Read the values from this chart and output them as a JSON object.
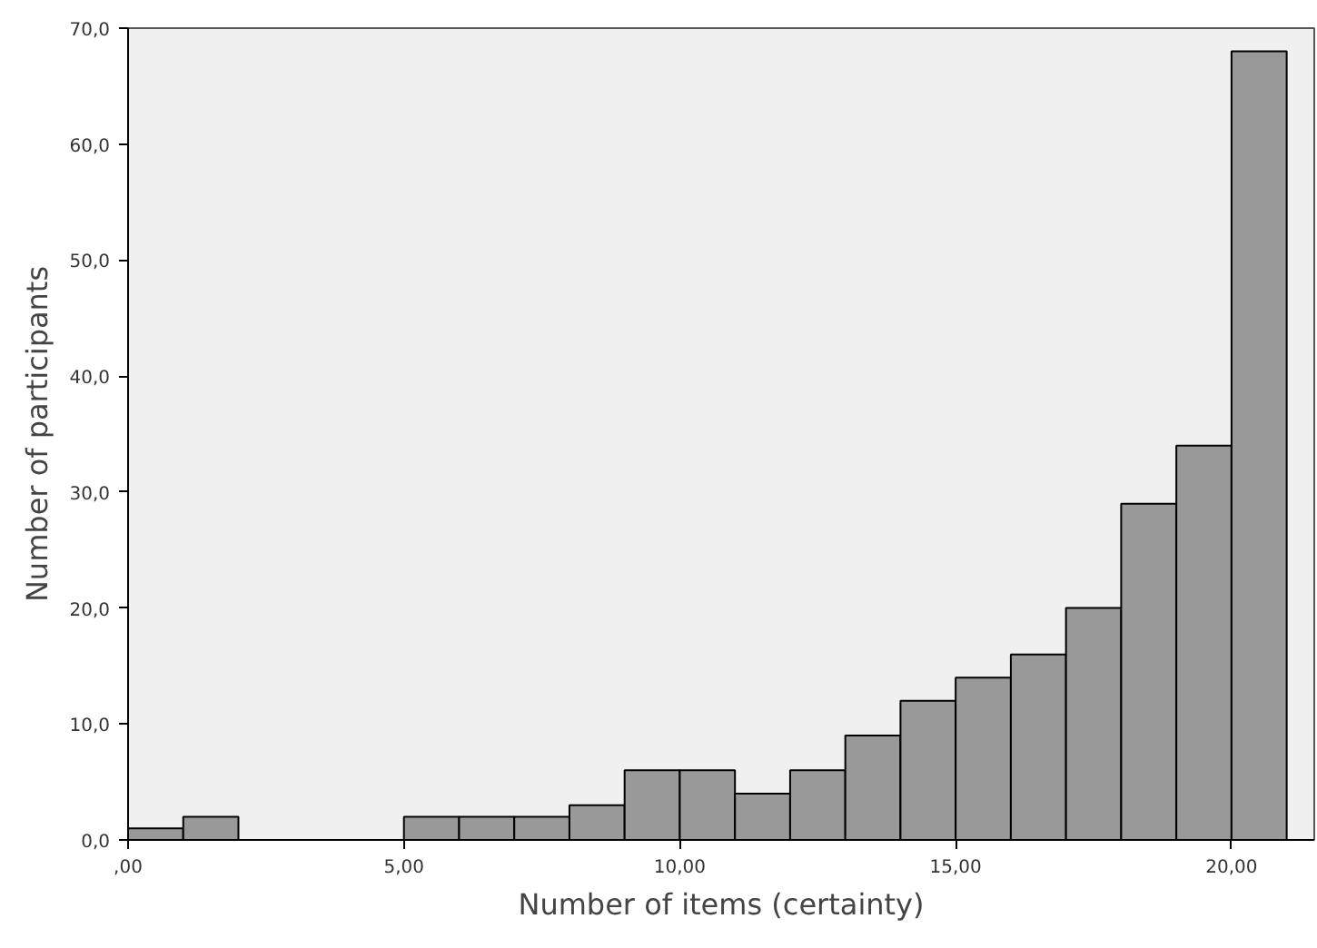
{
  "chart_data": {
    "type": "histogram",
    "xlabel": "Number of items (certainty)",
    "ylabel": "Number of participants",
    "bins": [
      0,
      1,
      2,
      3,
      4,
      5,
      6,
      7,
      8,
      9,
      10,
      11,
      12,
      13,
      14,
      15,
      16,
      17,
      18,
      19,
      20,
      21
    ],
    "values": [
      1,
      2,
      0,
      0,
      0,
      2,
      2,
      2,
      3,
      6,
      6,
      4,
      6,
      9,
      12,
      14,
      16,
      20,
      29,
      34,
      68
    ],
    "color": "#999999",
    "xlim": [
      0,
      21.5
    ],
    "ylim": [
      0,
      70
    ],
    "xticks": [
      {
        "value": 0,
        "label": ",00"
      },
      {
        "value": 5,
        "label": "5,00"
      },
      {
        "value": 10,
        "label": "10,00"
      },
      {
        "value": 15,
        "label": "15,00"
      },
      {
        "value": 20,
        "label": "20,00"
      }
    ],
    "yticks": [
      {
        "value": 0,
        "label": "0,0"
      },
      {
        "value": 10,
        "label": "10,0"
      },
      {
        "value": 20,
        "label": "20,0"
      },
      {
        "value": 30,
        "label": "30,0"
      },
      {
        "value": 40,
        "label": "40,0"
      },
      {
        "value": 50,
        "label": "50,0"
      },
      {
        "value": 60,
        "label": "60,0"
      },
      {
        "value": 70,
        "label": "70,0"
      }
    ],
    "grid": false
  }
}
